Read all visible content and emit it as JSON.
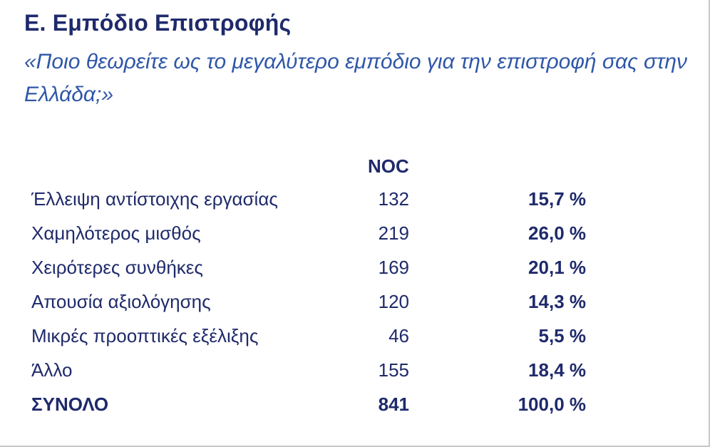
{
  "title": "Ε. Εμπόδιο Επιστροφής",
  "question": "«Ποιο θεωρείτε ως το μεγαλύτερο εμπόδιο για την επιστροφή σας στην Ελλάδα;»",
  "table": {
    "column_header": "NOC",
    "rows": [
      {
        "label": "Έλλειψη αντίστοιχης εργασίας",
        "count": "132",
        "percent": "15,7 %"
      },
      {
        "label": "Χαμηλότερος μισθός",
        "count": "219",
        "percent": "26,0 %"
      },
      {
        "label": "Χειρότερες συνθήκες",
        "count": "169",
        "percent": "20,1 %"
      },
      {
        "label": "Απουσία αξιολόγησης",
        "count": "120",
        "percent": "14,3 %"
      },
      {
        "label": "Μικρές προοπτικές εξέλιξης",
        "count": "46",
        "percent": "5,5 %"
      },
      {
        "label": "Άλλο",
        "count": "155",
        "percent": "18,4 %"
      }
    ],
    "total": {
      "label": "ΣΥΝΟΛΟ",
      "count": "841",
      "percent": "100,0 %"
    }
  }
}
